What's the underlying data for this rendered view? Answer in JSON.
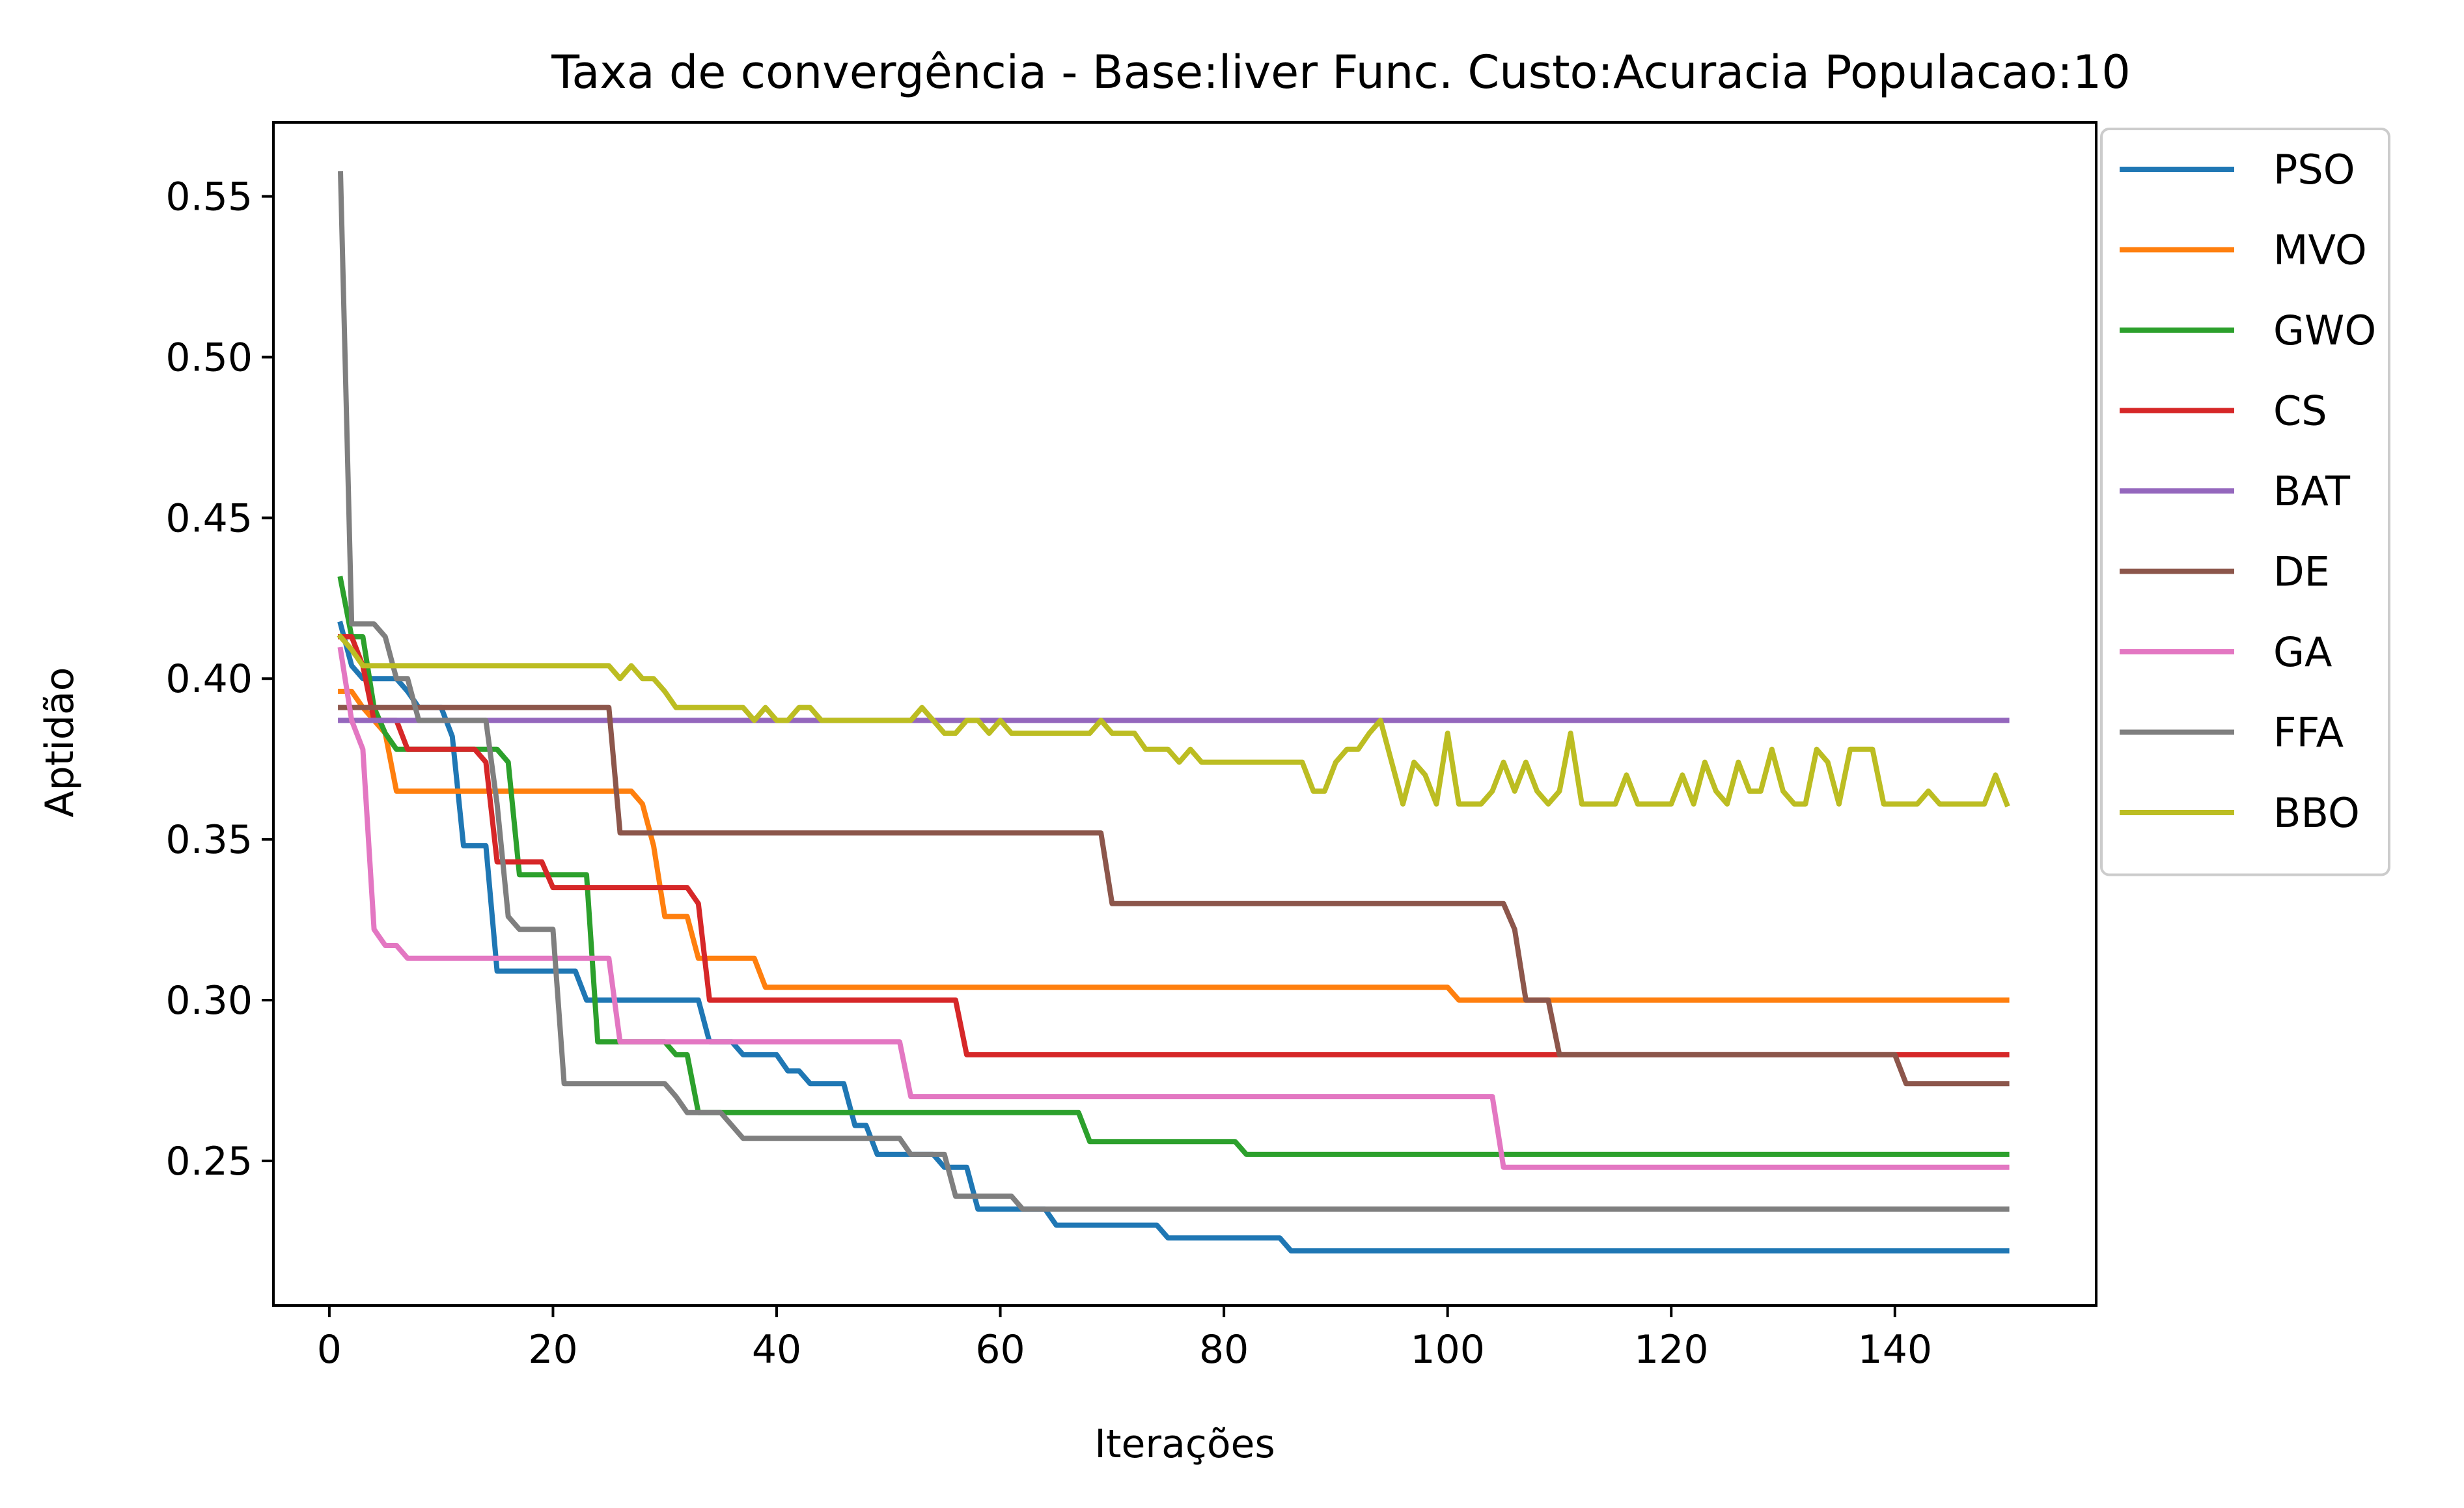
{
  "chart_data": {
    "type": "line",
    "title": "Taxa de convergência - Base:liver Func. Custo:Acuracia Populacao:10",
    "xlabel": "Iterações",
    "ylabel": "Aptidão",
    "xlim": [
      -5,
      158
    ],
    "ylim": [
      0.205,
      0.573
    ],
    "x_ticks": [
      0,
      20,
      40,
      60,
      80,
      100,
      120,
      140
    ],
    "y_ticks": [
      0.25,
      0.3,
      0.35,
      0.4,
      0.45,
      0.5,
      0.55
    ],
    "x_tick_labels": [
      "0",
      "20",
      "40",
      "60",
      "80",
      "100",
      "120",
      "140"
    ],
    "y_tick_labels": [
      "0.25",
      "0.30",
      "0.35",
      "0.40",
      "0.45",
      "0.50",
      "0.55"
    ],
    "grid": false,
    "legend_position": "outside-right-top",
    "series": [
      {
        "name": "PSO",
        "color": "#1f77b4",
        "points": [
          [
            1,
            0.417
          ],
          [
            2,
            0.404
          ],
          [
            3,
            0.4
          ],
          [
            6,
            0.4
          ],
          [
            7,
            0.396
          ],
          [
            8,
            0.391
          ],
          [
            10,
            0.391
          ],
          [
            11,
            0.382
          ],
          [
            12,
            0.348
          ],
          [
            14,
            0.348
          ],
          [
            15,
            0.309
          ],
          [
            22,
            0.309
          ],
          [
            23,
            0.3
          ],
          [
            33,
            0.3
          ],
          [
            34,
            0.287
          ],
          [
            36,
            0.287
          ],
          [
            37,
            0.283
          ],
          [
            40,
            0.283
          ],
          [
            41,
            0.278
          ],
          [
            42,
            0.278
          ],
          [
            43,
            0.274
          ],
          [
            46,
            0.274
          ],
          [
            47,
            0.261
          ],
          [
            48,
            0.261
          ],
          [
            49,
            0.252
          ],
          [
            54,
            0.252
          ],
          [
            55,
            0.248
          ],
          [
            57,
            0.248
          ],
          [
            58,
            0.235
          ],
          [
            64,
            0.235
          ],
          [
            65,
            0.23
          ],
          [
            74,
            0.23
          ],
          [
            75,
            0.226
          ],
          [
            85,
            0.226
          ],
          [
            86,
            0.222
          ],
          [
            150,
            0.222
          ]
        ]
      },
      {
        "name": "MVO",
        "color": "#ff7f0e",
        "points": [
          [
            1,
            0.396
          ],
          [
            2,
            0.396
          ],
          [
            3,
            0.391
          ],
          [
            5,
            0.383
          ],
          [
            6,
            0.365
          ],
          [
            27,
            0.365
          ],
          [
            28,
            0.361
          ],
          [
            29,
            0.348
          ],
          [
            30,
            0.326
          ],
          [
            32,
            0.326
          ],
          [
            33,
            0.313
          ],
          [
            38,
            0.313
          ],
          [
            39,
            0.304
          ],
          [
            100,
            0.304
          ],
          [
            101,
            0.3
          ],
          [
            150,
            0.3
          ]
        ]
      },
      {
        "name": "GWO",
        "color": "#2ca02c",
        "points": [
          [
            1,
            0.431
          ],
          [
            2,
            0.413
          ],
          [
            3,
            0.413
          ],
          [
            4,
            0.391
          ],
          [
            5,
            0.383
          ],
          [
            6,
            0.378
          ],
          [
            15,
            0.378
          ],
          [
            16,
            0.374
          ],
          [
            17,
            0.339
          ],
          [
            23,
            0.339
          ],
          [
            24,
            0.287
          ],
          [
            30,
            0.287
          ],
          [
            31,
            0.283
          ],
          [
            32,
            0.283
          ],
          [
            33,
            0.265
          ],
          [
            67,
            0.265
          ],
          [
            68,
            0.256
          ],
          [
            81,
            0.256
          ],
          [
            82,
            0.252
          ],
          [
            150,
            0.252
          ]
        ]
      },
      {
        "name": "CS",
        "color": "#d62728",
        "points": [
          [
            1,
            0.413
          ],
          [
            2,
            0.413
          ],
          [
            3,
            0.404
          ],
          [
            4,
            0.387
          ],
          [
            6,
            0.387
          ],
          [
            7,
            0.378
          ],
          [
            13,
            0.378
          ],
          [
            14,
            0.374
          ],
          [
            15,
            0.343
          ],
          [
            19,
            0.343
          ],
          [
            20,
            0.335
          ],
          [
            32,
            0.335
          ],
          [
            33,
            0.33
          ],
          [
            34,
            0.3
          ],
          [
            56,
            0.3
          ],
          [
            57,
            0.283
          ],
          [
            150,
            0.283
          ]
        ]
      },
      {
        "name": "BAT",
        "color": "#9467bd",
        "points": [
          [
            1,
            0.387
          ],
          [
            150,
            0.387
          ]
        ]
      },
      {
        "name": "DE",
        "color": "#8c564b",
        "points": [
          [
            1,
            0.391
          ],
          [
            25,
            0.391
          ],
          [
            26,
            0.352
          ],
          [
            69,
            0.352
          ],
          [
            70,
            0.33
          ],
          [
            105,
            0.33
          ],
          [
            106,
            0.322
          ],
          [
            107,
            0.3
          ],
          [
            109,
            0.3
          ],
          [
            110,
            0.283
          ],
          [
            140,
            0.283
          ],
          [
            141,
            0.274
          ],
          [
            150,
            0.274
          ]
        ]
      },
      {
        "name": "GA",
        "color": "#e377c2",
        "points": [
          [
            1,
            0.409
          ],
          [
            2,
            0.387
          ],
          [
            3,
            0.378
          ],
          [
            4,
            0.322
          ],
          [
            5,
            0.317
          ],
          [
            6,
            0.317
          ],
          [
            7,
            0.313
          ],
          [
            25,
            0.313
          ],
          [
            26,
            0.287
          ],
          [
            51,
            0.287
          ],
          [
            52,
            0.27
          ],
          [
            104,
            0.27
          ],
          [
            105,
            0.248
          ],
          [
            150,
            0.248
          ]
        ]
      },
      {
        "name": "FFA",
        "color": "#7f7f7f",
        "points": [
          [
            1,
            0.557
          ],
          [
            2,
            0.417
          ],
          [
            4,
            0.417
          ],
          [
            5,
            0.413
          ],
          [
            6,
            0.4
          ],
          [
            7,
            0.4
          ],
          [
            8,
            0.387
          ],
          [
            14,
            0.387
          ],
          [
            15,
            0.361
          ],
          [
            16,
            0.326
          ],
          [
            17,
            0.322
          ],
          [
            20,
            0.322
          ],
          [
            21,
            0.274
          ],
          [
            30,
            0.274
          ],
          [
            31,
            0.27
          ],
          [
            32,
            0.265
          ],
          [
            35,
            0.265
          ],
          [
            37,
            0.257
          ],
          [
            51,
            0.257
          ],
          [
            52,
            0.252
          ],
          [
            55,
            0.252
          ],
          [
            56,
            0.239
          ],
          [
            61,
            0.239
          ],
          [
            62,
            0.235
          ],
          [
            150,
            0.235
          ]
        ]
      },
      {
        "name": "BBO",
        "color": "#bcbd22",
        "points": [
          [
            1,
            0.413
          ],
          [
            2,
            0.409
          ],
          [
            3,
            0.404
          ],
          [
            25,
            0.404
          ],
          [
            26,
            0.4
          ],
          [
            27,
            0.404
          ],
          [
            28,
            0.4
          ],
          [
            29,
            0.4
          ],
          [
            30,
            0.396
          ],
          [
            31,
            0.391
          ],
          [
            37,
            0.391
          ],
          [
            38,
            0.387
          ],
          [
            39,
            0.391
          ],
          [
            40,
            0.387
          ],
          [
            41,
            0.387
          ],
          [
            42,
            0.391
          ],
          [
            43,
            0.391
          ],
          [
            44,
            0.387
          ],
          [
            52,
            0.387
          ],
          [
            53,
            0.391
          ],
          [
            54,
            0.387
          ],
          [
            55,
            0.383
          ],
          [
            56,
            0.383
          ],
          [
            57,
            0.387
          ],
          [
            58,
            0.387
          ],
          [
            59,
            0.383
          ],
          [
            60,
            0.387
          ],
          [
            61,
            0.383
          ],
          [
            68,
            0.383
          ],
          [
            69,
            0.387
          ],
          [
            70,
            0.383
          ],
          [
            72,
            0.383
          ],
          [
            73,
            0.378
          ],
          [
            75,
            0.378
          ],
          [
            76,
            0.374
          ],
          [
            77,
            0.378
          ],
          [
            78,
            0.374
          ],
          [
            87,
            0.374
          ],
          [
            88,
            0.365
          ],
          [
            89,
            0.365
          ],
          [
            90,
            0.374
          ],
          [
            91,
            0.378
          ],
          [
            92,
            0.378
          ],
          [
            93,
            0.383
          ],
          [
            94,
            0.387
          ],
          [
            95,
            0.374
          ],
          [
            96,
            0.361
          ],
          [
            97,
            0.374
          ],
          [
            98,
            0.37
          ],
          [
            99,
            0.361
          ],
          [
            100,
            0.383
          ],
          [
            101,
            0.361
          ],
          [
            103,
            0.361
          ],
          [
            104,
            0.365
          ],
          [
            105,
            0.374
          ],
          [
            106,
            0.365
          ],
          [
            107,
            0.374
          ],
          [
            108,
            0.365
          ],
          [
            109,
            0.361
          ],
          [
            110,
            0.365
          ],
          [
            111,
            0.383
          ],
          [
            112,
            0.361
          ],
          [
            115,
            0.361
          ],
          [
            116,
            0.37
          ],
          [
            117,
            0.361
          ],
          [
            120,
            0.361
          ],
          [
            121,
            0.37
          ],
          [
            122,
            0.361
          ],
          [
            123,
            0.374
          ],
          [
            124,
            0.365
          ],
          [
            125,
            0.361
          ],
          [
            126,
            0.374
          ],
          [
            127,
            0.365
          ],
          [
            128,
            0.365
          ],
          [
            129,
            0.378
          ],
          [
            130,
            0.365
          ],
          [
            131,
            0.361
          ],
          [
            132,
            0.361
          ],
          [
            133,
            0.378
          ],
          [
            134,
            0.374
          ],
          [
            135,
            0.361
          ],
          [
            136,
            0.378
          ],
          [
            138,
            0.378
          ],
          [
            139,
            0.361
          ],
          [
            142,
            0.361
          ],
          [
            143,
            0.365
          ],
          [
            144,
            0.361
          ],
          [
            148,
            0.361
          ],
          [
            149,
            0.37
          ],
          [
            150,
            0.361
          ]
        ]
      }
    ]
  }
}
